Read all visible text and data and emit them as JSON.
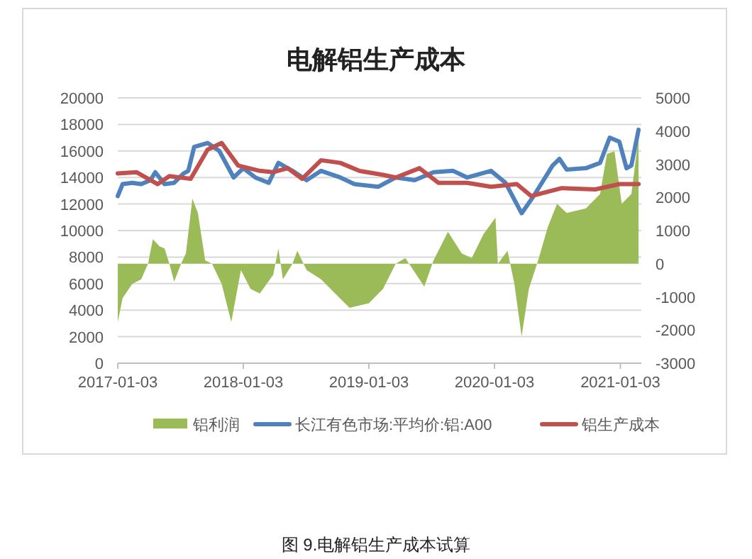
{
  "chart_data": {
    "type": "line",
    "title": "电解铝生产成本",
    "annotations": [
      "图 9.电解铝生产成本试算"
    ],
    "xlim": [
      "2017-01-03",
      "2021-03-05"
    ],
    "xticks": [
      "2017-01-03",
      "2018-01-03",
      "2019-01-03",
      "2020-01-03",
      "2021-01-03"
    ],
    "ylim": [
      0,
      20000
    ],
    "yticks": [
      0,
      2000,
      4000,
      6000,
      8000,
      10000,
      12000,
      14000,
      16000,
      18000,
      20000
    ],
    "y2lim": [
      -3000,
      5000
    ],
    "y2ticks": [
      -3000,
      -2000,
      -1000,
      0,
      1000,
      2000,
      3000,
      4000,
      5000
    ],
    "grid": "y",
    "legend": "bottom",
    "line_style": "solid",
    "marker": "none",
    "series": [
      {
        "name": "铝利润",
        "type": "area",
        "axis": "y2",
        "color": "#9bbb59",
        "x": [
          "2017-01-03",
          "2017-01-17",
          "2017-02-14",
          "2017-03-12",
          "2017-04-01",
          "2017-04-15",
          "2017-05-05",
          "2017-05-19",
          "2017-06-02",
          "2017-06-16",
          "2017-07-06",
          "2017-07-20",
          "2017-08-08",
          "2017-08-24",
          "2017-09-14",
          "2017-10-04",
          "2017-11-01",
          "2017-11-29",
          "2017-12-27",
          "2018-01-24",
          "2018-02-20",
          "2018-03-31",
          "2018-04-15",
          "2018-04-28",
          "2018-05-26",
          "2018-06-09",
          "2018-07-06",
          "2018-08-17",
          "2018-09-27",
          "2018-11-08",
          "2019-01-03",
          "2019-02-13",
          "2019-03-22",
          "2019-04-19",
          "2019-05-30",
          "2019-06-13",
          "2019-07-10",
          "2019-08-21",
          "2019-09-30",
          "2019-10-29",
          "2019-12-02",
          "2020-01-06",
          "2020-01-13",
          "2020-02-10",
          "2020-03-01",
          "2020-03-22",
          "2020-04-12",
          "2020-05-09",
          "2020-06-06",
          "2020-07-03",
          "2020-07-31",
          "2020-09-25",
          "2020-11-05",
          "2020-11-25",
          "2020-12-17",
          "2021-01-07",
          "2021-02-04",
          "2021-02-25"
        ],
        "values": [
          -1760,
          -1040,
          -610,
          -470,
          0,
          740,
          520,
          460,
          0,
          -540,
          0,
          310,
          1960,
          1530,
          100,
          0,
          -610,
          -1760,
          -190,
          -760,
          -900,
          -330,
          460,
          -470,
          0,
          390,
          -190,
          -470,
          -900,
          -1330,
          -1190,
          -760,
          0,
          170,
          -470,
          -690,
          100,
          960,
          310,
          170,
          890,
          1390,
          0,
          390,
          -610,
          -2190,
          -760,
          100,
          1100,
          1810,
          1530,
          1670,
          2100,
          3310,
          3390,
          1810,
          2100,
          3810
        ]
      },
      {
        "name": "长江有色市场:平均价:铝:A00",
        "color": "#4f81bd",
        "x": [
          "2017-01-03",
          "2017-01-17",
          "2017-02-14",
          "2017-03-12",
          "2017-04-08",
          "2017-04-22",
          "2017-05-19",
          "2017-06-16",
          "2017-07-13",
          "2017-07-27",
          "2017-08-13",
          "2017-09-21",
          "2017-10-25",
          "2017-12-06",
          "2018-01-03",
          "2018-02-07",
          "2018-03-18",
          "2018-04-15",
          "2018-05-26",
          "2018-07-06",
          "2018-08-17",
          "2018-10-12",
          "2018-11-22",
          "2019-01-30",
          "2019-03-22",
          "2019-05-16",
          "2019-07-10",
          "2019-09-05",
          "2019-10-16",
          "2019-12-24",
          "2020-02-04",
          "2020-03-22",
          "2020-04-26",
          "2020-06-20",
          "2020-07-10",
          "2020-07-31",
          "2020-09-25",
          "2020-11-05",
          "2020-12-03",
          "2020-12-31",
          "2021-01-21",
          "2021-02-04",
          "2021-02-25"
        ],
        "values": [
          12600,
          13500,
          13600,
          13500,
          13800,
          14400,
          13500,
          13600,
          14300,
          14500,
          16300,
          16600,
          16000,
          14000,
          14700,
          14000,
          13600,
          15100,
          14500,
          13800,
          14500,
          14000,
          13500,
          13300,
          14000,
          13800,
          14400,
          14500,
          14000,
          14500,
          13600,
          11300,
          12600,
          14900,
          15400,
          14600,
          14700,
          15100,
          17000,
          16700,
          14700,
          14900,
          17600
        ]
      },
      {
        "name": "铝生产成本",
        "color": "#c0504d",
        "x": [
          "2017-01-03",
          "2017-02-26",
          "2017-04-29",
          "2017-06-02",
          "2017-08-03",
          "2017-09-21",
          "2017-11-01",
          "2017-12-19",
          "2018-02-20",
          "2018-03-31",
          "2018-05-12",
          "2018-06-23",
          "2018-08-17",
          "2018-10-12",
          "2018-12-06",
          "2019-02-13",
          "2019-03-22",
          "2019-05-30",
          "2019-07-24",
          "2019-10-16",
          "2019-12-24",
          "2020-03-08",
          "2020-04-19",
          "2020-07-17",
          "2020-10-22",
          "2020-12-31",
          "2021-02-25"
        ],
        "values": [
          14300,
          14400,
          13500,
          14100,
          13900,
          16100,
          16600,
          14900,
          14500,
          14400,
          14700,
          13900,
          15300,
          15100,
          14500,
          14200,
          14000,
          14700,
          13600,
          13600,
          13300,
          13500,
          12600,
          13200,
          13100,
          13500,
          13500
        ]
      }
    ]
  }
}
